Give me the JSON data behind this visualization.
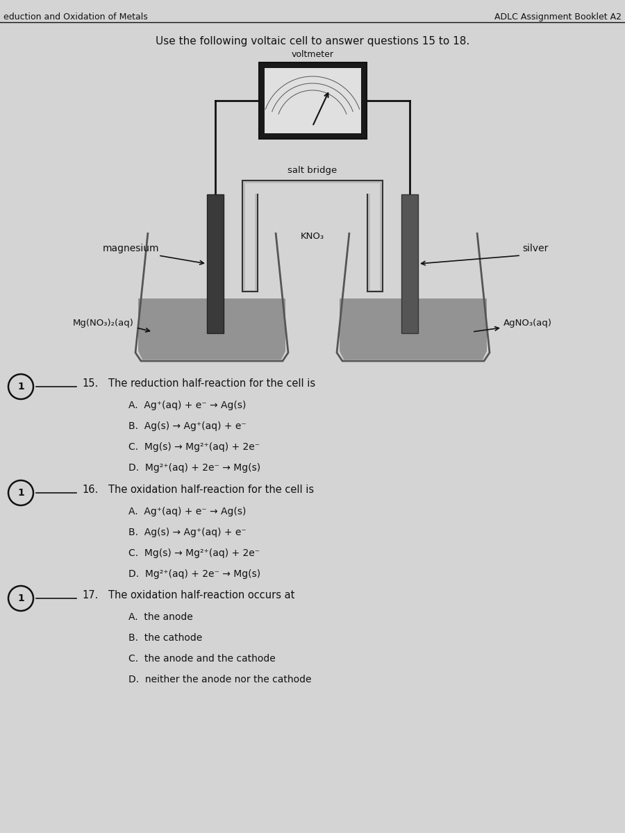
{
  "header_left": "eduction and Oxidation of Metals",
  "header_right": "ADLC Assignment Booklet A2",
  "instruction": "Use the following voltaic cell to answer questions 15 to 18.",
  "voltmeter_label": "voltmeter",
  "salt_bridge_label": "salt bridge",
  "kno3_label": "KNO₃",
  "magnesium_label": "magnesium",
  "silver_label": "silver",
  "mg_solution": "Mg(NO₃)₂(aq)",
  "ag_solution": "AgNO₃(aq)",
  "q15_num": "15.",
  "q15_text": "The reduction half-reaction for the cell is",
  "q15_opts": [
    "A.  Ag⁺(aq) + e⁻ → Ag(s)",
    "B.  Ag(s) → Ag⁺(aq) + e⁻",
    "C.  Mg(s) → Mg²⁺(aq) + 2e⁻",
    "D.  Mg²⁺(aq) + 2e⁻ → Mg(s)"
  ],
  "q16_num": "16.",
  "q16_text": "The oxidation half-reaction for the cell is",
  "q16_opts": [
    "A.  Ag⁺(aq) + e⁻ → Ag(s)",
    "B.  Ag(s) → Ag⁺(aq) + e⁻",
    "C.  Mg(s) → Mg²⁺(aq) + 2e⁻",
    "D.  Mg²⁺(aq) + 2e⁻ → Mg(s)"
  ],
  "q17_num": "17.",
  "q17_text": "The oxidation half-reaction occurs at",
  "q17_opts": [
    "A.  the anode",
    "B.  the cathode",
    "C.  the anode and the cathode",
    "D.  neither the anode nor the cathode"
  ],
  "circle_label": "1",
  "bg_color": "#c8c8c8",
  "page_bg": "#d4d4d4",
  "text_color": "#111111",
  "dark_gray": "#2a2a2a",
  "mid_gray": "#555555",
  "light_gray": "#aaaaaa",
  "beaker_liquid": "#909090",
  "electrode_dark": "#444444",
  "electrode_light": "#888888",
  "wire_color": "#111111"
}
